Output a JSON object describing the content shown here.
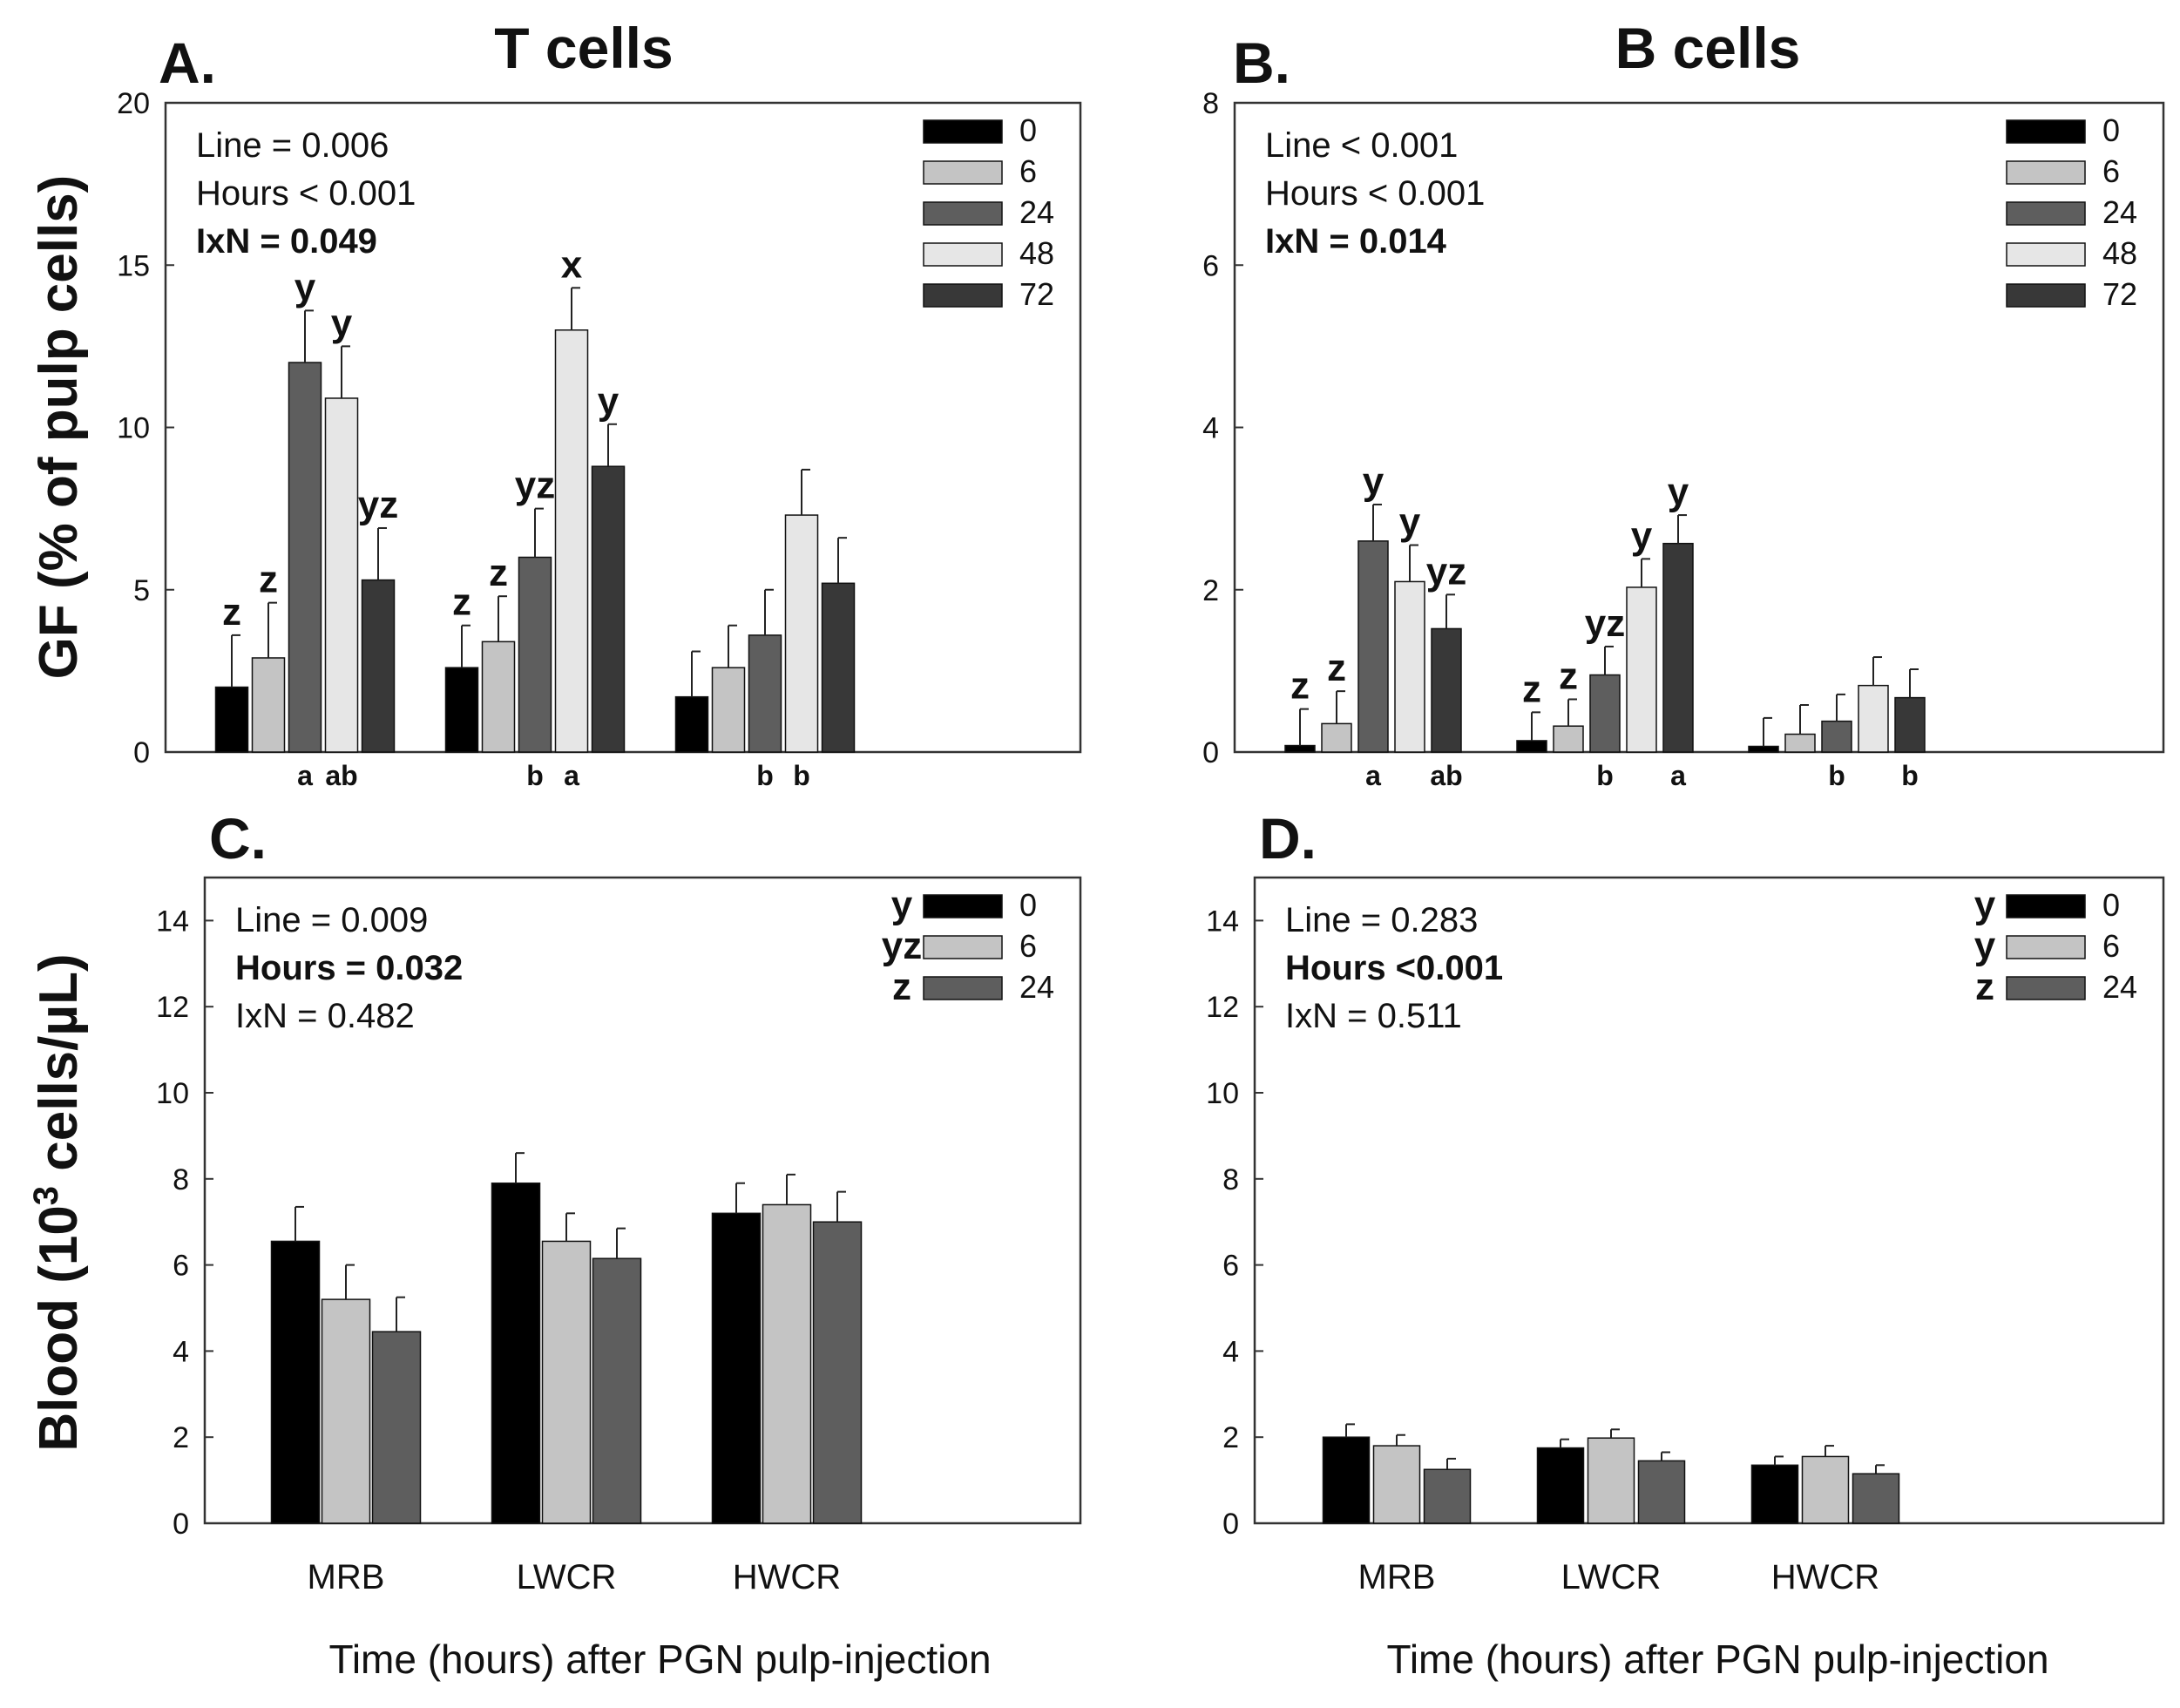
{
  "figure": {
    "ylabel_top": "GF (% of pulp cells)",
    "ylabel_bottom_prefix": "Blood (10",
    "ylabel_bottom_exp": "3",
    "ylabel_bottom_suffix": " cells/µL)"
  },
  "chart_data": [
    {
      "type": "bar",
      "panel": "A.",
      "title": "T cells",
      "xlabel": "",
      "ylabel": "GF (% of pulp cells)",
      "ylim": [
        0,
        20
      ],
      "yticks": [
        0,
        5,
        10,
        15,
        20
      ],
      "categories": [
        "MRB",
        "LWCR",
        "HWCR"
      ],
      "legend_position": "top-right",
      "stats": [
        {
          "text": "Line = 0.006",
          "bold": false
        },
        {
          "text": "Hours < 0.001",
          "bold": false
        },
        {
          "text": "IxN = 0.049",
          "bold": true
        }
      ],
      "series": [
        {
          "name": "0",
          "color": "#000000",
          "values": [
            2.0,
            2.6,
            1.7
          ],
          "errors": [
            1.6,
            1.3,
            1.4
          ],
          "letters": [
            "z",
            "z",
            ""
          ]
        },
        {
          "name": "6",
          "color": "#c4c4c4",
          "values": [
            2.9,
            3.4,
            2.6
          ],
          "errors": [
            1.7,
            1.4,
            1.3
          ],
          "letters": [
            "z",
            "z",
            ""
          ]
        },
        {
          "name": "24",
          "color": "#5e5e5e",
          "values": [
            12.0,
            6.0,
            3.6
          ],
          "errors": [
            1.6,
            1.5,
            1.4
          ],
          "letters": [
            "y",
            "yz",
            ""
          ]
        },
        {
          "name": "48",
          "color": "#e6e6e6",
          "values": [
            10.9,
            13.0,
            7.3
          ],
          "errors": [
            1.6,
            1.3,
            1.4
          ],
          "letters": [
            "y",
            "x",
            ""
          ]
        },
        {
          "name": "72",
          "color": "#383838",
          "values": [
            5.3,
            8.8,
            5.2
          ],
          "errors": [
            1.6,
            1.3,
            1.4
          ],
          "letters": [
            "yz",
            "y",
            ""
          ]
        }
      ],
      "below_letters": [
        {
          "category": "MRB",
          "series": "24",
          "text": "a"
        },
        {
          "category": "MRB",
          "series": "48",
          "text": "ab"
        },
        {
          "category": "LWCR",
          "series": "24",
          "text": "b"
        },
        {
          "category": "LWCR",
          "series": "48",
          "text": "a"
        },
        {
          "category": "HWCR",
          "series": "24",
          "text": "b"
        },
        {
          "category": "HWCR",
          "series": "48",
          "text": "b"
        }
      ],
      "show_category_labels": false
    },
    {
      "type": "bar",
      "panel": "B.",
      "title": "B cells",
      "xlabel": "",
      "ylabel": "",
      "ylim": [
        0,
        8
      ],
      "yticks": [
        0,
        2,
        4,
        6,
        8
      ],
      "categories": [
        "MRB",
        "LWCR",
        "HWCR"
      ],
      "legend_position": "top-right",
      "stats": [
        {
          "text": "Line < 0.001",
          "bold": false
        },
        {
          "text": "Hours < 0.001",
          "bold": false
        },
        {
          "text": "IxN = 0.014",
          "bold": true
        }
      ],
      "series": [
        {
          "name": "0",
          "color": "#000000",
          "values": [
            0.08,
            0.14,
            0.07
          ],
          "errors": [
            0.45,
            0.35,
            0.35
          ],
          "letters": [
            "z",
            "z",
            ""
          ]
        },
        {
          "name": "6",
          "color": "#c4c4c4",
          "values": [
            0.35,
            0.32,
            0.22
          ],
          "errors": [
            0.4,
            0.33,
            0.36
          ],
          "letters": [
            "z",
            "z",
            ""
          ]
        },
        {
          "name": "24",
          "color": "#5e5e5e",
          "values": [
            2.6,
            0.95,
            0.38
          ],
          "errors": [
            0.45,
            0.35,
            0.33
          ],
          "letters": [
            "y",
            "yz",
            ""
          ]
        },
        {
          "name": "48",
          "color": "#e6e6e6",
          "values": [
            2.1,
            2.03,
            0.82
          ],
          "errors": [
            0.45,
            0.35,
            0.35
          ],
          "letters": [
            "y",
            "y",
            ""
          ]
        },
        {
          "name": "72",
          "color": "#383838",
          "values": [
            1.52,
            2.57,
            0.67
          ],
          "errors": [
            0.42,
            0.35,
            0.35
          ],
          "letters": [
            "yz",
            "y",
            ""
          ]
        }
      ],
      "below_letters": [
        {
          "category": "MRB",
          "series": "24",
          "text": "a"
        },
        {
          "category": "MRB",
          "series": "72",
          "text": "ab"
        },
        {
          "category": "LWCR",
          "series": "24",
          "text": "b"
        },
        {
          "category": "LWCR",
          "series": "72",
          "text": "a"
        },
        {
          "category": "HWCR",
          "series": "24",
          "text": "b"
        },
        {
          "category": "HWCR",
          "series": "72",
          "text": "b"
        }
      ],
      "show_category_labels": false
    },
    {
      "type": "bar",
      "panel": "C.",
      "title": "",
      "xlabel": "Time (hours) after PGN pulp-injection",
      "ylabel": "Blood (10^3 cells/µL)",
      "ylim": [
        0,
        15
      ],
      "yticks": [
        0,
        2,
        4,
        6,
        8,
        10,
        12,
        14
      ],
      "categories": [
        "MRB",
        "LWCR",
        "HWCR"
      ],
      "legend_position": "top-right",
      "stats": [
        {
          "text": "Line = 0.009",
          "bold": false
        },
        {
          "text": "Hours = 0.032",
          "bold": true
        },
        {
          "text": "IxN = 0.482",
          "bold": false
        }
      ],
      "legend_letters": [
        "y",
        "yz",
        "z"
      ],
      "series": [
        {
          "name": "0",
          "color": "#000000",
          "values": [
            6.55,
            7.9,
            7.2
          ],
          "errors": [
            0.8,
            0.7,
            0.7
          ]
        },
        {
          "name": "6",
          "color": "#c4c4c4",
          "values": [
            5.2,
            6.55,
            7.4
          ],
          "errors": [
            0.8,
            0.65,
            0.7
          ]
        },
        {
          "name": "24",
          "color": "#5e5e5e",
          "values": [
            4.45,
            6.15,
            7.0
          ],
          "errors": [
            0.8,
            0.7,
            0.7
          ]
        }
      ],
      "below_letters": [],
      "show_category_labels": true
    },
    {
      "type": "bar",
      "panel": "D.",
      "title": "",
      "xlabel": "Time (hours) after PGN pulp-injection",
      "ylabel": "",
      "ylim": [
        0,
        15
      ],
      "yticks": [
        0,
        2,
        4,
        6,
        8,
        10,
        12,
        14
      ],
      "categories": [
        "MRB",
        "LWCR",
        "HWCR"
      ],
      "legend_position": "top-right",
      "stats": [
        {
          "text": "Line = 0.283",
          "bold": false
        },
        {
          "text": "Hours <0.001",
          "bold": true
        },
        {
          "text": "IxN = 0.511",
          "bold": false
        }
      ],
      "legend_letters": [
        "y",
        "y",
        "z"
      ],
      "series": [
        {
          "name": "0",
          "color": "#000000",
          "values": [
            2.0,
            1.75,
            1.35
          ],
          "errors": [
            0.3,
            0.2,
            0.2
          ]
        },
        {
          "name": "6",
          "color": "#c4c4c4",
          "values": [
            1.8,
            1.98,
            1.55
          ],
          "errors": [
            0.25,
            0.2,
            0.25
          ]
        },
        {
          "name": "24",
          "color": "#5e5e5e",
          "values": [
            1.25,
            1.45,
            1.15
          ],
          "errors": [
            0.25,
            0.2,
            0.2
          ]
        }
      ],
      "below_letters": [],
      "show_category_labels": true
    }
  ]
}
